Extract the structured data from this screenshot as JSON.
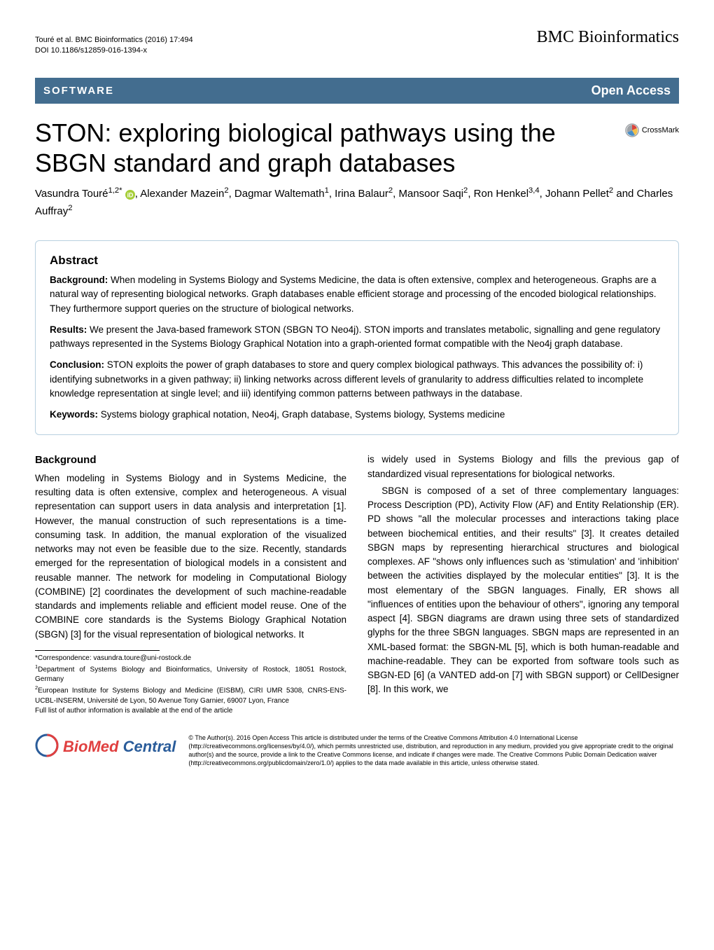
{
  "header": {
    "citation_line1": "Touré et al. BMC Bioinformatics  (2016) 17:494",
    "citation_line2": "DOI 10.1186/s12859-016-1394-x",
    "journal": "BMC Bioinformatics"
  },
  "banner": {
    "category": "SOFTWARE",
    "access": "Open Access"
  },
  "crossmark_label": "CrossMark",
  "title": "STON: exploring biological pathways using the SBGN standard and graph databases",
  "authors_html": "Vasundra Touré<sup>1,2*</sup> {orcid}, Alexander Mazein<sup>2</sup>, Dagmar Waltemath<sup>1</sup>, Irina Balaur<sup>2</sup>, Mansoor Saqi<sup>2</sup>, Ron Henkel<sup>3,4</sup>, Johann Pellet<sup>2</sup> and Charles Auffray<sup>2</sup>",
  "abstract": {
    "heading": "Abstract",
    "background_label": "Background:",
    "background_text": "  When modeling in Systems Biology and Systems Medicine, the data is often extensive, complex and heterogeneous. Graphs are a natural way of representing biological networks. Graph databases enable efficient storage and processing of the encoded biological relationships. They furthermore support queries on the structure of biological networks.",
    "results_label": "Results:",
    "results_text": "  We present the Java-based framework STON (SBGN TO Neo4j). STON imports and translates metabolic, signalling and gene regulatory pathways represented in the Systems Biology Graphical Notation into a graph-oriented format compatible with the Neo4j graph database.",
    "conclusion_label": "Conclusion:",
    "conclusion_text": "  STON exploits the power of graph databases to store and query complex biological pathways. This advances the possibility of: i) identifying subnetworks in a given pathway; ii) linking networks across different levels of granularity to address difficulties related to incomplete knowledge representation at single level; and iii) identifying common patterns between pathways in the database.",
    "keywords_label": "Keywords:",
    "keywords_text": "  Systems biology graphical notation, Neo4j, Graph database, Systems biology, Systems medicine"
  },
  "body": {
    "background_heading": "Background",
    "col1": "When modeling in Systems Biology and in Systems Medicine, the resulting data is often extensive, complex and heterogeneous. A visual representation can support users in data analysis and interpretation [1]. However, the manual construction of such representations is a time-consuming task. In addition, the manual exploration of the visualized networks may not even be feasible due to the size. Recently, standards emerged for the representation of biological models in a consistent and reusable manner. The network for modeling in Computational Biology (COMBINE) [2] coordinates the development of such machine-readable standards and implements reliable and efficient model reuse. One of the COMBINE core standards is the Systems Biology Graphical Notation (SBGN) [3] for the visual representation of biological networks. It",
    "col2_p1": "is widely used in Systems Biology and fills the previous gap of standardized visual representations for biological networks.",
    "col2_p2": "SBGN is composed of a set of three complementary languages: Process Description (PD), Activity Flow (AF) and Entity Relationship (ER). PD shows \"all the molecular processes and interactions taking place between biochemical entities, and their results\" [3]. It creates detailed SBGN maps by representing hierarchical structures and biological complexes. AF \"shows only influences such as 'stimulation' and 'inhibition' between the activities displayed by the molecular entities\" [3]. It is the most elementary of the SBGN languages. Finally, ER shows all \"influences of entities upon the behaviour of others\", ignoring any temporal aspect [4]. SBGN diagrams are drawn using three sets of standardized glyphs for the three SBGN languages. SBGN maps are represented in an XML-based format: the SBGN-ML [5], which is both human-readable and machine-readable. They can be exported from software tools such as SBGN-ED [6] (a VANTED add-on [7] with SBGN support) or CellDesigner [8]. In this work, we"
  },
  "footnotes": {
    "correspondence": "*Correspondence: vasundra.toure@uni-rostock.de",
    "aff1": "1Department of Systems Biology and Bioinformatics, University of Rostock, 18051 Rostock, Germany",
    "aff2": "2European Institute for Systems Biology and Medicine (EISBM), CIRI UMR 5308, CNRS-ENS-UCBL-INSERM, Université de Lyon, 50 Avenue Tony Garnier, 69007 Lyon, France",
    "full_list": "Full list of author information is available at the end of the article"
  },
  "footer": {
    "logo_bio": "BioMed",
    "logo_central": " Central",
    "license": "© The Author(s). 2016 Open Access This article is distributed under the terms of the Creative Commons Attribution 4.0 International License (http://creativecommons.org/licenses/by/4.0/), which permits unrestricted use, distribution, and reproduction in any medium, provided you give appropriate credit to the original author(s) and the source, provide a link to the Creative Commons license, and indicate if changes were made. The Creative Commons Public Domain Dedication waiver (http://creativecommons.org/publicdomain/zero/1.0/) applies to the data made available in this article, unless otherwise stated."
  },
  "colors": {
    "banner_bg": "#436d8f",
    "abstract_border": "#b8d0e0",
    "bmc_red": "#e03f3f",
    "bmc_blue": "#2a5c9a",
    "crossmark_gray": "#9fa3a7",
    "crossmark_red": "#d9453d",
    "crossmark_yellow": "#f3c04b",
    "crossmark_blue": "#4a8fc7"
  }
}
